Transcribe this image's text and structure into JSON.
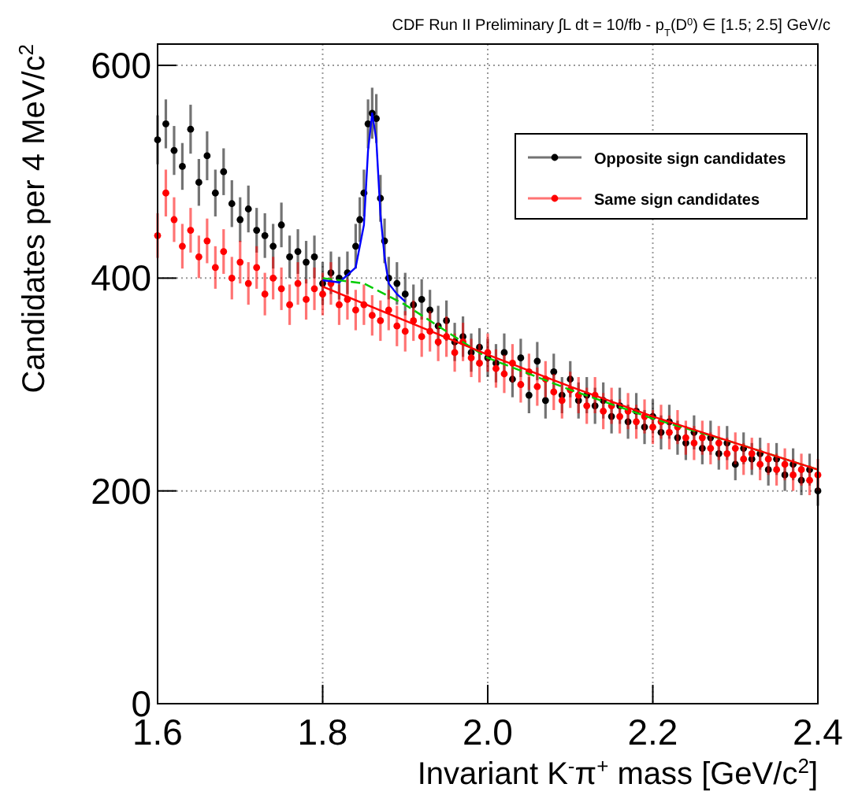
{
  "chart_data": {
    "type": "scatter",
    "title": "CDF Run II Preliminary   ∫L dt = 10/fb - p$_{T}$(D$^{0}$) ∈ [1.5; 2.5] GeV/c",
    "xlabel": "Invariant K$^{-}$π$^{+}$ mass [GeV/c$^{2}$]",
    "ylabel": "Candidates per 4 MeV/c$^{2}$",
    "xlim": [
      1.6,
      2.4
    ],
    "ylim": [
      0,
      620
    ],
    "xticks": [
      1.6,
      1.8,
      {
        "value": 2,
        "label": "2.0"
      },
      2.2,
      2.4
    ],
    "yticks": [
      0,
      200,
      400,
      600
    ],
    "grid": true,
    "legend": "top right",
    "series": [
      {
        "name": "Opposite sign candidates",
        "color": "#000000",
        "marker": "circle",
        "x": [
          1.6,
          1.61,
          1.62,
          1.63,
          1.64,
          1.65,
          1.66,
          1.67,
          1.68,
          1.69,
          1.7,
          1.71,
          1.72,
          1.73,
          1.74,
          1.75,
          1.76,
          1.77,
          1.78,
          1.79,
          1.8,
          1.81,
          1.82,
          1.83,
          1.84,
          1.845,
          1.85,
          1.855,
          1.86,
          1.865,
          1.87,
          1.875,
          1.88,
          1.89,
          1.9,
          1.91,
          1.92,
          1.93,
          1.94,
          1.95,
          1.96,
          1.97,
          1.98,
          1.99,
          2.0,
          2.01,
          2.02,
          2.03,
          2.04,
          2.05,
          2.06,
          2.07,
          2.08,
          2.09,
          2.1,
          2.11,
          2.12,
          2.13,
          2.14,
          2.15,
          2.16,
          2.17,
          2.18,
          2.19,
          2.2,
          2.21,
          2.22,
          2.23,
          2.24,
          2.25,
          2.26,
          2.27,
          2.28,
          2.29,
          2.3,
          2.31,
          2.32,
          2.33,
          2.34,
          2.35,
          2.36,
          2.37,
          2.38,
          2.39,
          2.4
        ],
        "values": [
          530,
          545,
          520,
          505,
          540,
          490,
          515,
          480,
          500,
          470,
          455,
          465,
          445,
          440,
          430,
          450,
          420,
          425,
          415,
          420,
          395,
          405,
          400,
          405,
          430,
          455,
          480,
          545,
          555,
          550,
          475,
          435,
          400,
          395,
          385,
          375,
          380,
          370,
          355,
          360,
          340,
          345,
          330,
          335,
          325,
          320,
          330,
          305,
          325,
          290,
          322,
          285,
          312,
          290,
          305,
          285,
          290,
          280,
          285,
          270,
          280,
          265,
          275,
          260,
          270,
          255,
          265,
          250,
          245,
          255,
          240,
          250,
          235,
          245,
          225,
          240,
          230,
          235,
          220,
          230,
          215,
          225,
          210,
          220,
          200
        ],
        "errors": [
          23,
          23,
          23,
          22,
          23,
          22,
          23,
          22,
          22,
          22,
          21,
          22,
          21,
          21,
          21,
          21,
          20,
          21,
          20,
          20,
          20,
          20,
          20,
          20,
          21,
          21,
          22,
          23,
          24,
          23,
          22,
          21,
          20,
          20,
          20,
          19,
          19,
          19,
          19,
          19,
          18,
          19,
          18,
          18,
          18,
          18,
          18,
          17,
          18,
          17,
          18,
          17,
          17,
          17,
          17,
          17,
          17,
          17,
          17,
          16,
          17,
          16,
          17,
          16,
          16,
          16,
          16,
          16,
          16,
          16,
          15,
          16,
          15,
          16,
          15,
          15,
          15,
          15,
          15,
          15,
          15,
          15,
          14,
          15,
          14
        ]
      },
      {
        "name": "Same sign candidates",
        "color": "#ff0000",
        "marker": "circle",
        "x": [
          1.6,
          1.61,
          1.62,
          1.63,
          1.64,
          1.65,
          1.66,
          1.67,
          1.68,
          1.69,
          1.7,
          1.71,
          1.72,
          1.73,
          1.74,
          1.75,
          1.76,
          1.77,
          1.78,
          1.79,
          1.8,
          1.81,
          1.82,
          1.83,
          1.84,
          1.85,
          1.86,
          1.87,
          1.88,
          1.89,
          1.9,
          1.91,
          1.92,
          1.93,
          1.94,
          1.95,
          1.96,
          1.97,
          1.98,
          1.99,
          2.0,
          2.01,
          2.02,
          2.03,
          2.04,
          2.05,
          2.06,
          2.07,
          2.08,
          2.09,
          2.1,
          2.11,
          2.12,
          2.13,
          2.14,
          2.15,
          2.16,
          2.17,
          2.18,
          2.19,
          2.2,
          2.21,
          2.22,
          2.23,
          2.24,
          2.25,
          2.26,
          2.27,
          2.28,
          2.29,
          2.3,
          2.31,
          2.32,
          2.33,
          2.34,
          2.35,
          2.36,
          2.37,
          2.38,
          2.39,
          2.4
        ],
        "values": [
          440,
          480,
          455,
          430,
          445,
          420,
          435,
          410,
          425,
          400,
          415,
          395,
          410,
          385,
          400,
          390,
          375,
          395,
          380,
          390,
          385,
          395,
          375,
          380,
          370,
          375,
          365,
          360,
          370,
          355,
          350,
          360,
          345,
          350,
          340,
          345,
          330,
          340,
          325,
          320,
          330,
          315,
          310,
          320,
          300,
          312,
          298,
          305,
          293,
          285,
          295,
          290,
          280,
          290,
          275,
          280,
          270,
          275,
          265,
          270,
          260,
          265,
          255,
          260,
          250,
          245,
          250,
          240,
          245,
          235,
          240,
          230,
          235,
          225,
          230,
          220,
          225,
          215,
          220,
          210,
          215
        ],
        "errors": [
          21,
          22,
          21,
          21,
          21,
          20,
          21,
          20,
          21,
          20,
          20,
          20,
          20,
          20,
          20,
          20,
          19,
          20,
          19,
          20,
          20,
          20,
          19,
          19,
          19,
          19,
          19,
          19,
          19,
          19,
          19,
          19,
          19,
          19,
          18,
          19,
          18,
          18,
          18,
          18,
          18,
          18,
          18,
          18,
          17,
          17,
          18,
          17,
          17,
          17,
          17,
          17,
          17,
          17,
          17,
          17,
          16,
          17,
          16,
          16,
          16,
          16,
          16,
          16,
          16,
          16,
          16,
          15,
          16,
          15,
          15,
          15,
          15,
          15,
          15,
          15,
          15,
          15,
          15,
          14,
          15
        ]
      },
      {
        "color": "#0000ff",
        "type": "line",
        "marker": "none",
        "x": [
          1.8,
          1.82,
          1.84,
          1.85,
          1.855,
          1.86,
          1.865,
          1.87,
          1.875,
          1.88,
          1.89,
          1.9
        ],
        "values": [
          398,
          396,
          410,
          450,
          520,
          555,
          530,
          460,
          420,
          395,
          385,
          378
        ]
      },
      {
        "color": "#00cc00",
        "type": "line",
        "marker": "none",
        "line_style": "dashed",
        "x": [
          1.8,
          1.85,
          1.9,
          1.95,
          2.0,
          2.1,
          2.2,
          2.3,
          2.4
        ],
        "values": [
          400,
          395,
          375,
          350,
          325,
          295,
          268,
          245,
          220
        ]
      },
      {
        "color": "#ff0000",
        "type": "line",
        "marker": "none",
        "x": [
          1.8,
          1.9,
          2.0,
          2.1,
          2.2,
          2.3,
          2.4
        ],
        "values": [
          392,
          360,
          328,
          298,
          270,
          245,
          220
        ]
      }
    ]
  }
}
